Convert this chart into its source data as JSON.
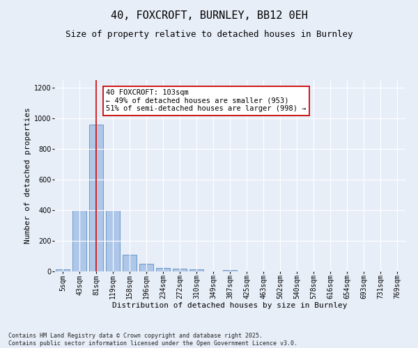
{
  "title1": "40, FOXCROFT, BURNLEY, BB12 0EH",
  "title2": "Size of property relative to detached houses in Burnley",
  "xlabel": "Distribution of detached houses by size in Burnley",
  "ylabel": "Number of detached properties",
  "categories": [
    "5sqm",
    "43sqm",
    "81sqm",
    "119sqm",
    "158sqm",
    "196sqm",
    "234sqm",
    "272sqm",
    "310sqm",
    "349sqm",
    "387sqm",
    "425sqm",
    "463sqm",
    "502sqm",
    "540sqm",
    "578sqm",
    "616sqm",
    "654sqm",
    "693sqm",
    "731sqm",
    "769sqm"
  ],
  "values": [
    15,
    400,
    960,
    400,
    110,
    50,
    25,
    18,
    12,
    0,
    10,
    0,
    0,
    0,
    0,
    0,
    0,
    0,
    0,
    0,
    0
  ],
  "bar_color": "#aec6e8",
  "bar_edge_color": "#5a8fc0",
  "annotation_line1": "40 FOXCROFT: 103sqm",
  "annotation_line2": "← 49% of detached houses are smaller (953)",
  "annotation_line3": "51% of semi-detached houses are larger (998) →",
  "annotation_box_color": "#ffffff",
  "annotation_box_edge": "#cc0000",
  "vline_x_index": 2,
  "vline_color": "#cc0000",
  "background_color": "#e8eef8",
  "grid_color": "#ffffff",
  "ylim": [
    0,
    1250
  ],
  "yticks": [
    0,
    200,
    400,
    600,
    800,
    1000,
    1200
  ],
  "footnote": "Contains HM Land Registry data © Crown copyright and database right 2025.\nContains public sector information licensed under the Open Government Licence v3.0.",
  "title_fontsize": 11,
  "subtitle_fontsize": 9,
  "axis_label_fontsize": 8,
  "tick_fontsize": 7,
  "annotation_fontsize": 7.5,
  "footnote_fontsize": 6
}
